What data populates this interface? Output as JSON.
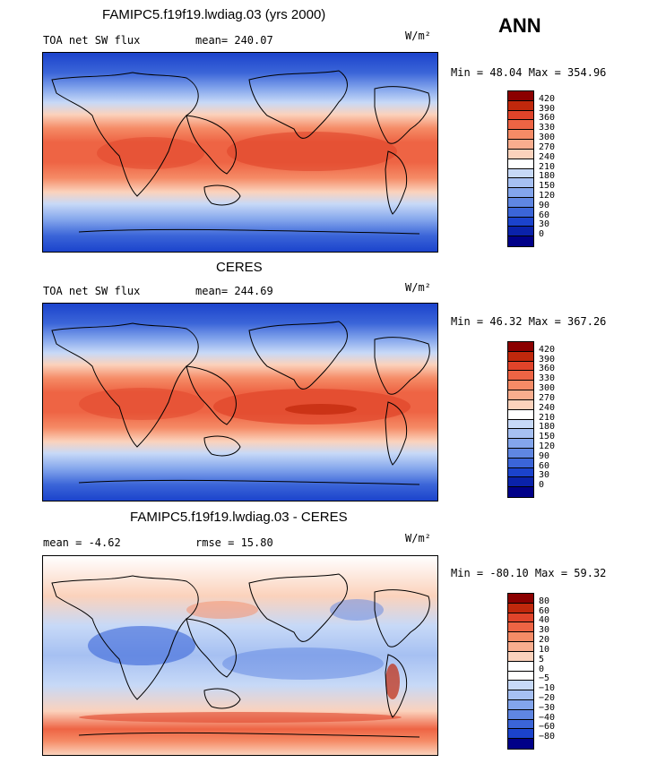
{
  "season": "ANN",
  "units": "W/m²",
  "panels": [
    {
      "title": "FAMIPC5.f19f19.lwdiag.03 (yrs 2000)",
      "left_label": "TOA net SW flux",
      "right_label": "mean= 240.07",
      "minmax": "Min =  48.04 Max = 354.96",
      "colorbar_levels": [
        "420",
        "390",
        "360",
        "330",
        "300",
        "270",
        "240",
        "210",
        "180",
        "150",
        "120",
        "90",
        "60",
        "30",
        "0"
      ],
      "colorbar_colors": [
        "#8b0000",
        "#c0280c",
        "#e0442a",
        "#ee6444",
        "#f58b66",
        "#f9ad8e",
        "#fbd2bc",
        "#ffffff",
        "#c7d9f7",
        "#a6c0f2",
        "#83a5ec",
        "#5f86e2",
        "#3b65d8",
        "#1b43cc",
        "#0a22aa",
        "#000088"
      ]
    },
    {
      "title": "CERES",
      "left_label": "TOA net SW flux",
      "right_label": "mean= 244.69",
      "minmax": "Min =  46.32 Max = 367.26",
      "colorbar_levels": [
        "420",
        "390",
        "360",
        "330",
        "300",
        "270",
        "240",
        "210",
        "180",
        "150",
        "120",
        "90",
        "60",
        "30",
        "0"
      ],
      "colorbar_colors": [
        "#8b0000",
        "#c0280c",
        "#e0442a",
        "#ee6444",
        "#f58b66",
        "#f9ad8e",
        "#fbd2bc",
        "#ffffff",
        "#c7d9f7",
        "#a6c0f2",
        "#83a5ec",
        "#5f86e2",
        "#3b65d8",
        "#1b43cc",
        "#0a22aa",
        "#000088"
      ]
    },
    {
      "title": "FAMIPC5.f19f19.lwdiag.03 - CERES",
      "left_label": "mean =   -4.62",
      "right_label": "rmse =   15.80",
      "minmax": "Min = -80.10 Max =  59.32",
      "colorbar_levels": [
        "80",
        "60",
        "40",
        "30",
        "20",
        "10",
        "5",
        "0",
        "−5",
        "−10",
        "−20",
        "−30",
        "−40",
        "−60",
        "−80"
      ],
      "colorbar_colors": [
        "#8b0000",
        "#c0280c",
        "#e0442a",
        "#ee6444",
        "#f58b66",
        "#f9ad8e",
        "#fbd2bc",
        "#ffffff",
        "#ffffff",
        "#c7d9f7",
        "#a6c0f2",
        "#83a5ec",
        "#5f86e2",
        "#3b65d8",
        "#1b43cc",
        "#000088"
      ]
    }
  ]
}
